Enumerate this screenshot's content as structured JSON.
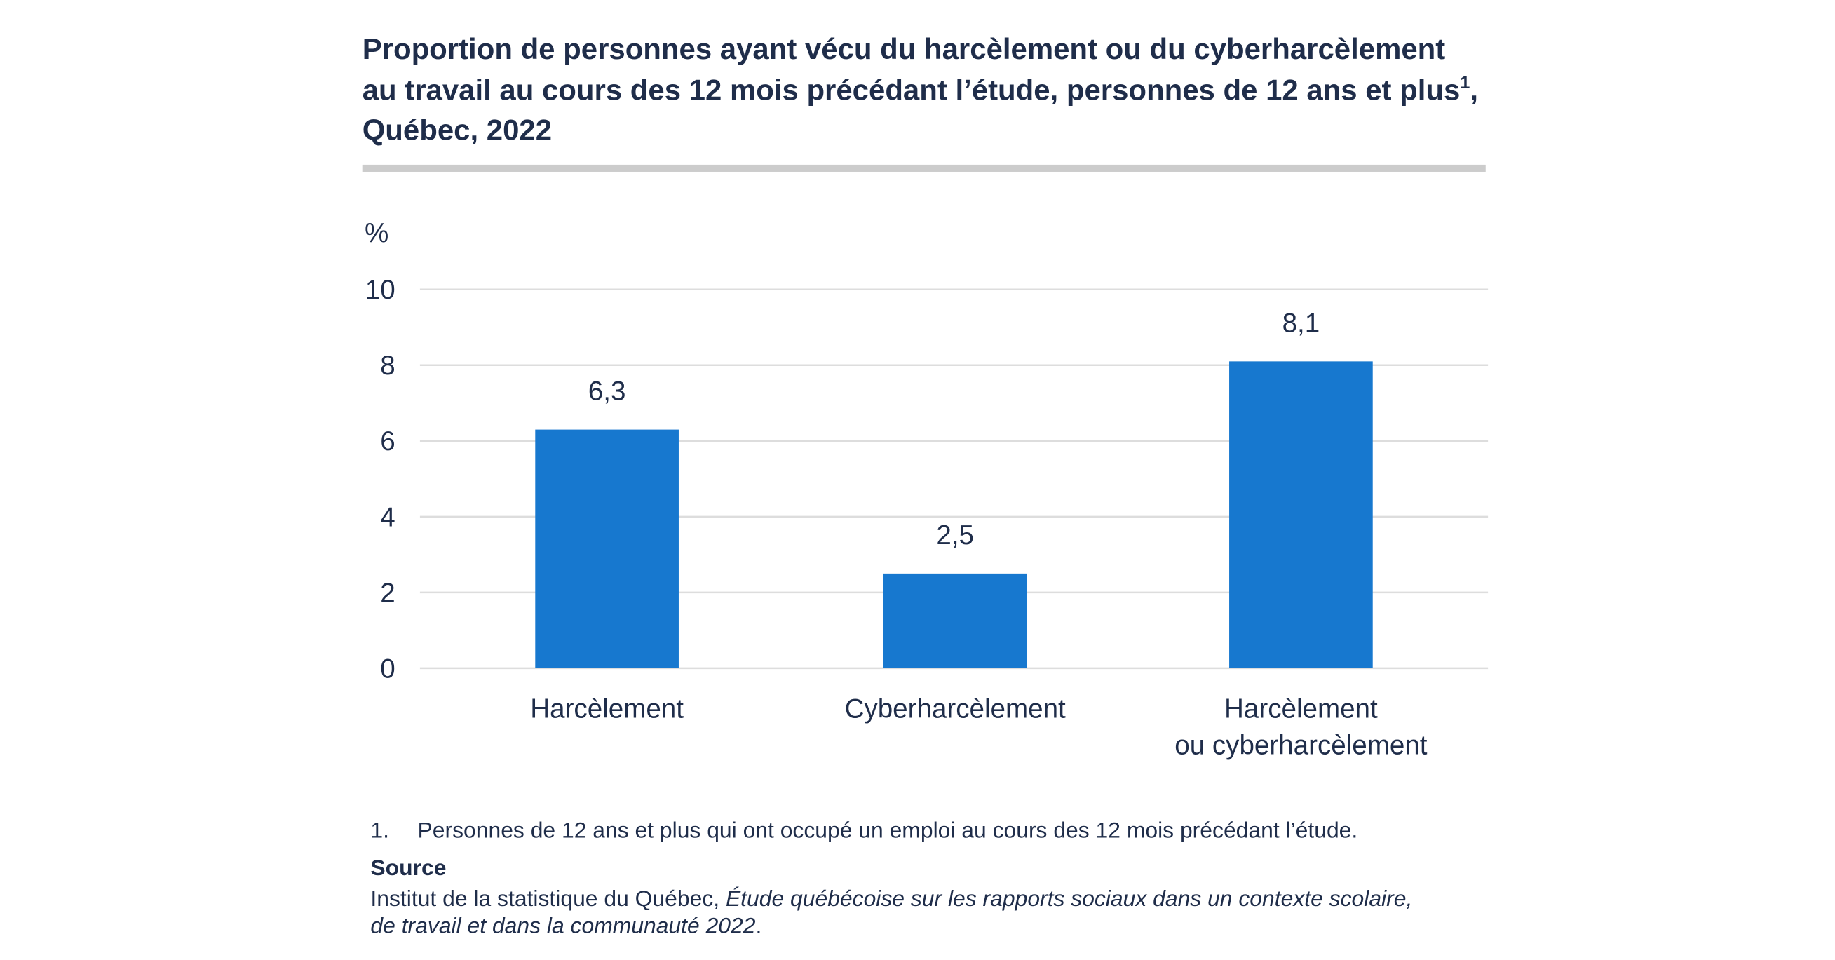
{
  "chart_data": {
    "type": "bar",
    "title": [
      "Proportion de personnes ayant vécu du harcèlement ou du cyberharcèlement",
      "au travail au cours des 12 mois précédant l’étude, personnes de 12 ans et plus",
      "Québec, 2022"
    ],
    "title_note_ref": "1",
    "title_line_end": ",",
    "y_label": "%",
    "categories": [
      [
        "Harcèlement"
      ],
      [
        "Cyberharcèlement"
      ],
      [
        "Harcèlement",
        "ou cyberharcèlement"
      ]
    ],
    "values": [
      6.3,
      2.5,
      8.1
    ],
    "value_labels": [
      "6,3",
      "2,5",
      "8,1"
    ],
    "color": "#1778cf",
    "ylim": [
      0,
      10
    ],
    "yticks": [
      0,
      2,
      4,
      6,
      8,
      10
    ],
    "grid": true,
    "footnote": {
      "number": "1.",
      "text": "Personnes de 12 ans et plus qui ont occupé un emploi au cours des 12 mois précédant l’étude."
    },
    "source": {
      "heading": "Source",
      "text": "Institut de la statistique du Québec, ",
      "title_line1": "Étude québécoise sur les rapports sociaux dans un contexte scolaire,",
      "title_line2": "de travail et dans la communauté 2022",
      "end": "."
    }
  }
}
